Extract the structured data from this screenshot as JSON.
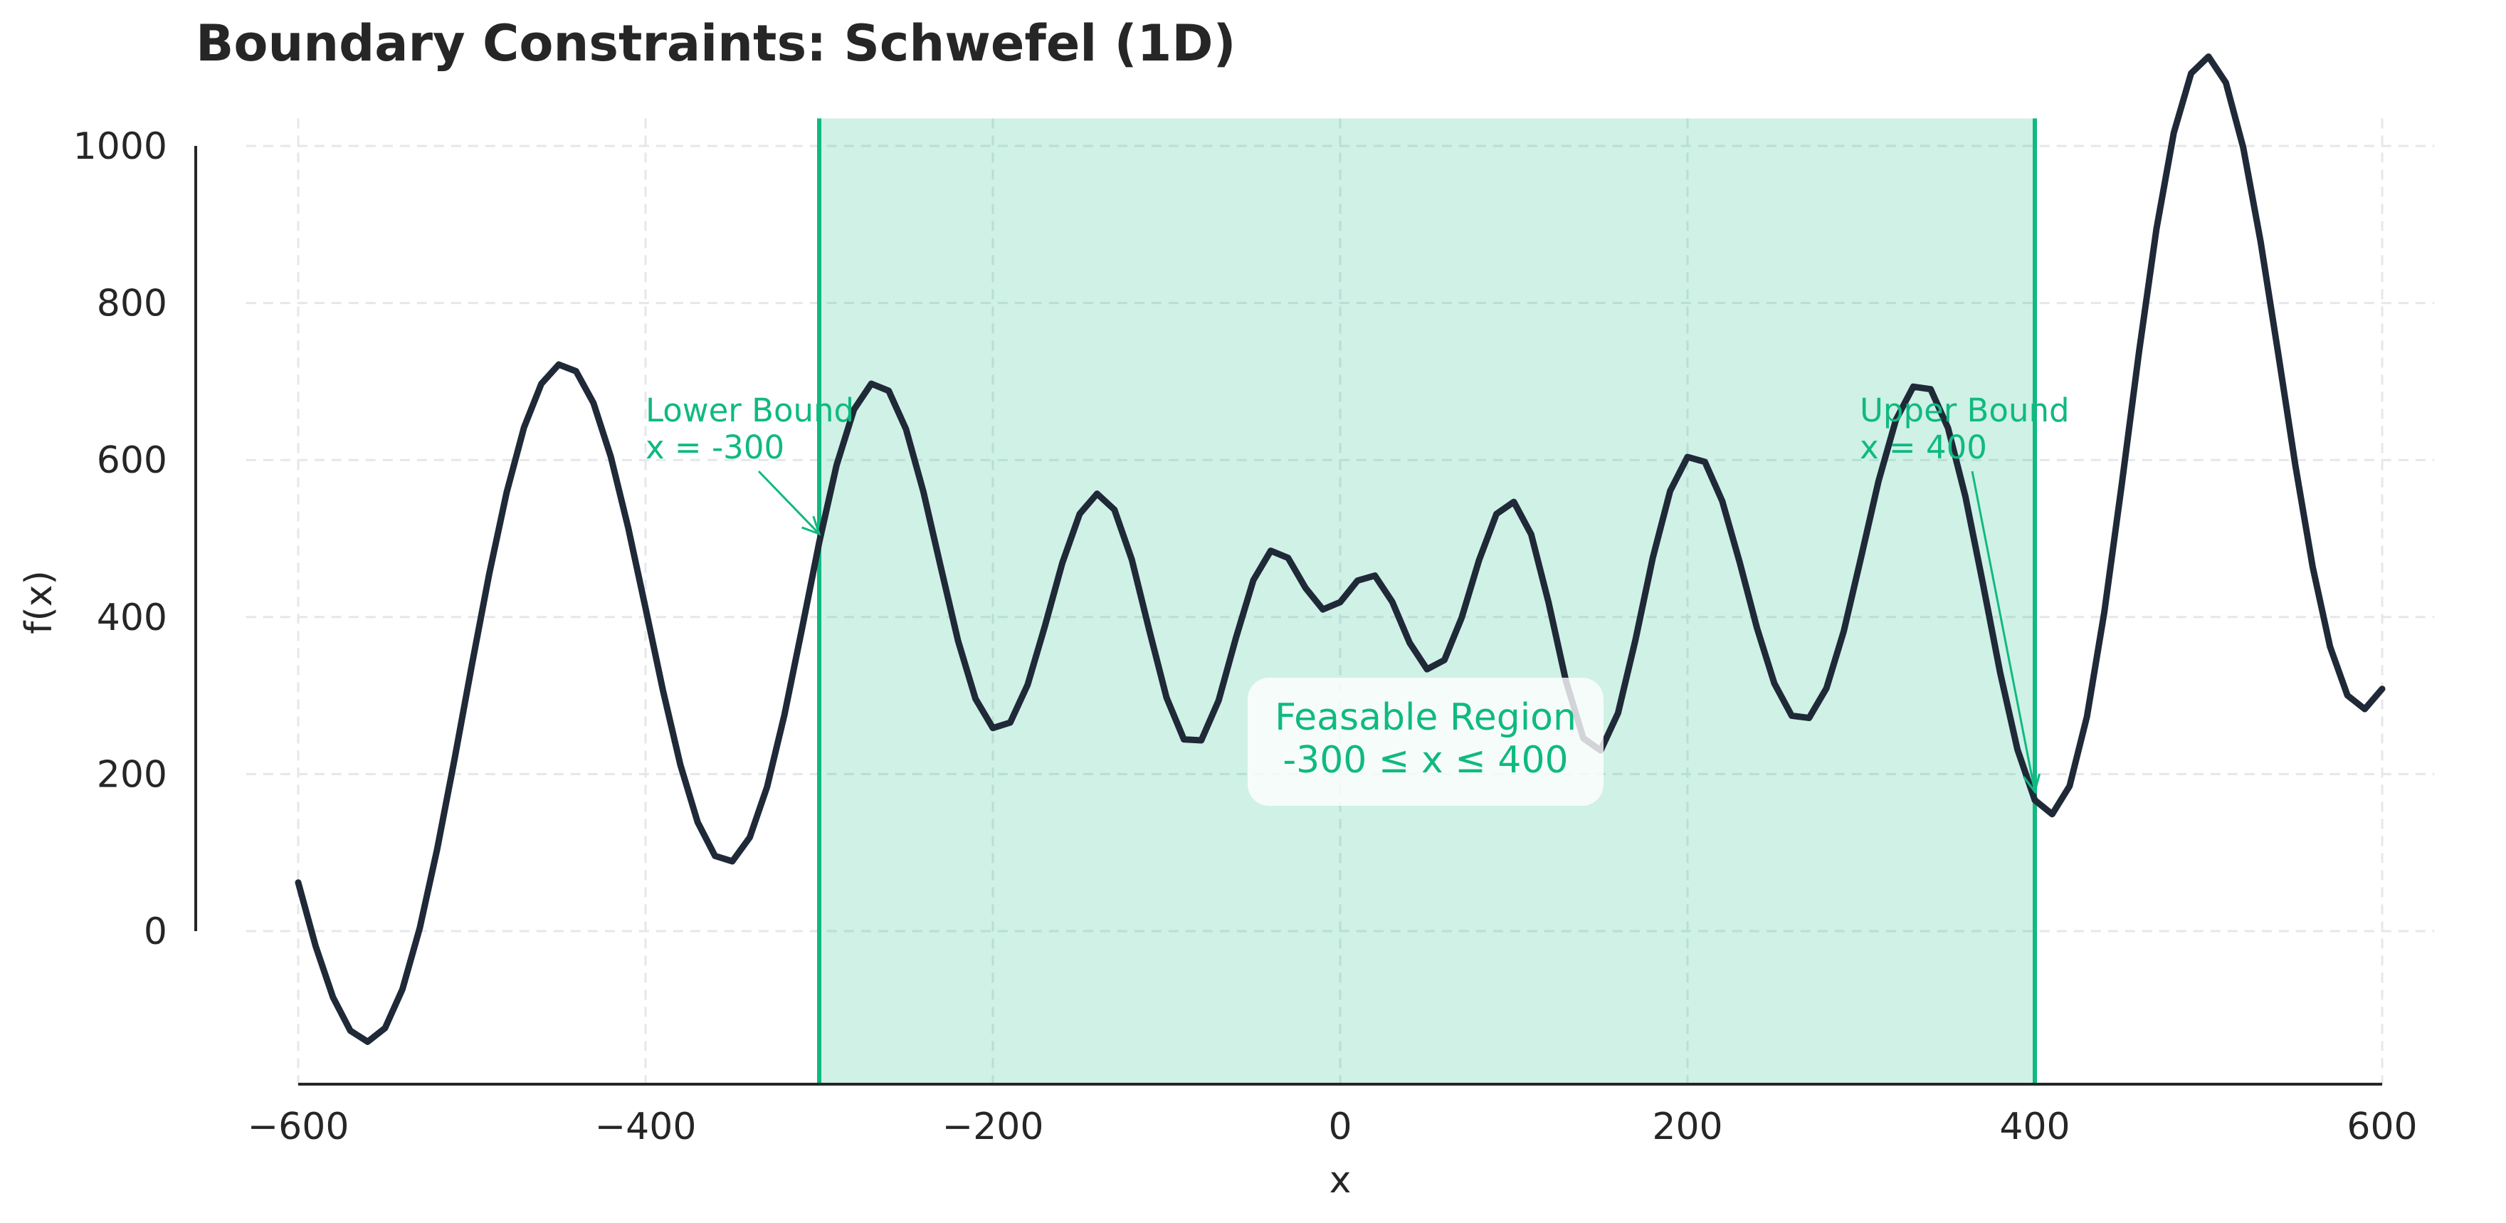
{
  "chart_data": {
    "type": "line",
    "title": "Boundary Constraints: Schwefel (1D)",
    "xlabel": "x",
    "ylabel": "f(x)",
    "xlim": [
      -630,
      630
    ],
    "ylim": [
      -195,
      1035
    ],
    "x_ticks": [
      -600,
      -400,
      -200,
      0,
      200,
      400,
      600
    ],
    "x_tick_labels": [
      "−600",
      "−400",
      "−200",
      "0",
      "200",
      "400",
      "600"
    ],
    "y_ticks": [
      0,
      200,
      400,
      600,
      800,
      1000
    ],
    "y_tick_labels": [
      "0",
      "200",
      "400",
      "600",
      "800",
      "1000"
    ],
    "grid": true,
    "series": [
      {
        "function": "Schwefel 1D",
        "color": "#1f2937",
        "x": [
          -600,
          -590,
          -580,
          -570,
          -560,
          -550,
          -540,
          -530,
          -520,
          -510,
          -500,
          -490,
          -480,
          -470,
          -460,
          -450,
          -440,
          -430,
          -420,
          -410,
          -400,
          -390,
          -380,
          -370,
          -360,
          -350,
          -340,
          -330,
          -320,
          -310,
          -300,
          -290,
          -280,
          -270,
          -260,
          -250,
          -240,
          -230,
          -220,
          -210,
          -200,
          -190,
          -180,
          -170,
          -160,
          -150,
          -140,
          -130,
          -120,
          -110,
          -100,
          -90,
          -80,
          -70,
          -60,
          -50,
          -40,
          -30,
          -20,
          -10,
          0,
          10,
          20,
          30,
          40,
          50,
          60,
          70,
          80,
          90,
          100,
          110,
          120,
          130,
          140,
          150,
          160,
          170,
          180,
          190,
          200,
          210,
          220,
          230,
          240,
          250,
          260,
          270,
          280,
          290,
          300,
          310,
          320,
          330,
          340,
          350,
          360,
          370,
          380,
          390,
          400,
          410,
          420,
          430,
          440,
          450,
          460,
          470,
          480,
          490,
          500,
          510,
          520,
          530,
          540,
          550,
          560,
          570,
          580,
          590,
          600
        ],
        "y": [
          61.96,
          -18.9,
          -84.1,
          -126.7,
          -140.9,
          -123.5,
          -74.1,
          4.0,
          104.3,
          218.9,
          339.0,
          455.2,
          558.6,
          641.3,
          697.1,
          721.6,
          713.1,
          672.7,
          604.2,
          514.0,
          411.4,
          306.8,
          212.2,
          138.8,
          95.8,
          88.9,
          119.3,
          183.8,
          275.6,
          384.1,
          495.1,
          593.4,
          664.2,
          697.2,
          688.2,
          639.3,
          559.6,
          463.7,
          369.4,
          295.9,
          258.7,
          265.6,
          313.7,
          388.8,
          469.0,
          531.4,
          557.1,
          536.7,
          473.3,
          383.8,
          297.5,
          244.2,
          243.0,
          293.7,
          373.7,
          447.0,
          484.4,
          475.3,
          437.2,
          409.7,
          418.98,
          446.4,
          452.8,
          419.3,
          367.2,
          333.5,
          345.2,
          399.5,
          472.7,
          531.4,
          546.7,
          505.2,
          418.5,
          318.5,
          245.8,
          230.1,
          277.8,
          370.6,
          475.4,
          560.6,
          603.9,
          597.6,
          547.7,
          470.1,
          386.0,
          315.5,
          274.3,
          271.5,
          309.3,
          382.1,
          476.6,
          573.2,
          651.1,
          693.4,
          690.2,
          640.8,
          553.7,
          443.7,
          329.5,
          231.3,
          166.8,
          149.0,
          184.7,
          273.2,
          406.2,
          568.0,
          737.7,
          893.8,
          1016.6,
          1092.5,
          1113.8,
          1080.6,
          997.9,
          878.2,
          737.6,
          593.5,
          463.6,
          362.2,
          300.3,
          282.8,
          308.5
        ]
      }
    ],
    "feasible_region": {
      "xmin": -300,
      "xmax": 400,
      "color": "#10b981"
    },
    "annotations": {
      "lower_line1": "Lower Bound",
      "lower_line2": "x = -300",
      "upper_line1": "Upper Bound",
      "upper_line2": "x = 400",
      "region_line1": "Feasable Region",
      "region_line2": "-300 ≤ x ≤ 400"
    }
  }
}
